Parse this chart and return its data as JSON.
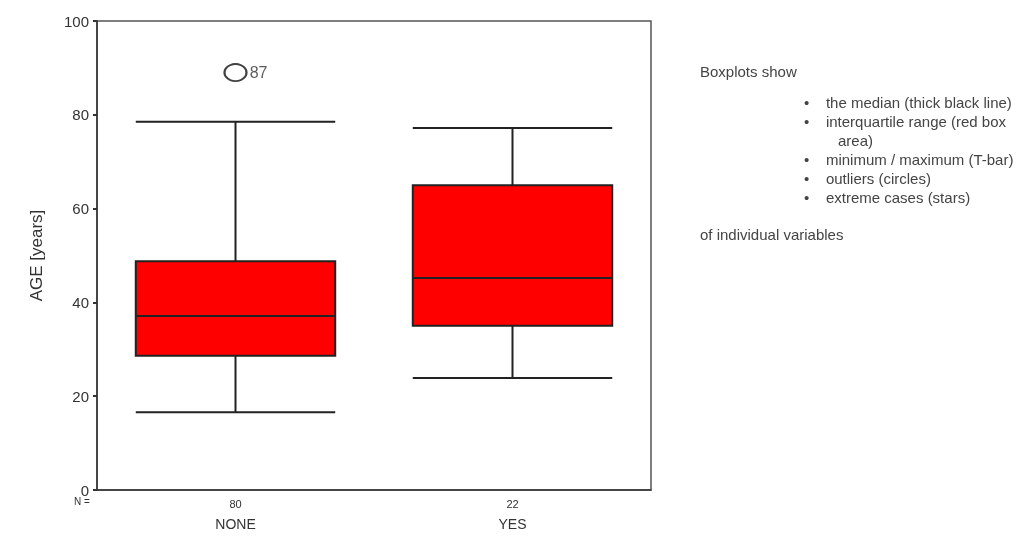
{
  "chart_data": {
    "type": "box",
    "ylabel": "AGE [years]",
    "categories": [
      "NONE",
      "YES"
    ],
    "color": "#ff0000",
    "boxes": [
      {
        "low": 16.6,
        "q1": 28.6,
        "median": 37.1,
        "q3": 48.8,
        "high": 78.5,
        "outliers": [
          89
        ]
      },
      {
        "low": 23.9,
        "q1": 35,
        "median": 45.2,
        "q3": 65,
        "high": 77.2
      }
    ],
    "ylim": [
      0,
      100
    ],
    "yticks": [
      0,
      20,
      40,
      60,
      80,
      100
    ],
    "grid": false,
    "annotations": [
      "N =",
      "80",
      "22",
      "87",
      "Boxplots show",
      "•    the median (thick black line)",
      "•    interquartile range (red box area)",
      "•    minimum / maximum (T-bar)",
      "•    outliers (circles)",
      "•    extreme cases (stars)",
      "of individual variables"
    ]
  }
}
